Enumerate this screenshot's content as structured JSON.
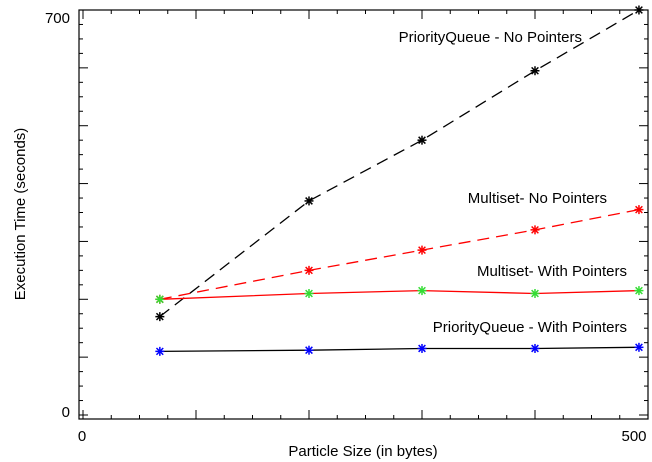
{
  "chart_data": {
    "type": "line",
    "xlabel": "Particle Size (in bytes)",
    "ylabel": "Execution Time (seconds)",
    "xlim": [
      0,
      500
    ],
    "ylim": [
      0,
      700
    ],
    "x_ticks": [
      0,
      500
    ],
    "y_ticks": [
      0,
      700
    ],
    "x": [
      68,
      200,
      300,
      400,
      492
    ],
    "series": [
      {
        "name": "PriorityQueue - No Pointers",
        "values": [
          170,
          370,
          475,
          595,
          700
        ],
        "line_color": "#000000",
        "marker_color": "#000000",
        "dash": "dashed"
      },
      {
        "name": "Multiset- No Pointers",
        "values": [
          200,
          250,
          285,
          320,
          355
        ],
        "line_color": "#ff0000",
        "marker_color": "#ff0000",
        "dash": "dashed"
      },
      {
        "name": "Multiset- With Pointers",
        "values": [
          200,
          210,
          215,
          210,
          215
        ],
        "line_color": "#ff0000",
        "marker_color": "#33dd33",
        "dash": "solid"
      },
      {
        "name": "PriorityQueue - With Pointers",
        "values": [
          110,
          112,
          115,
          115,
          117
        ],
        "line_color": "#000000",
        "marker_color": "#0000ff",
        "dash": "solid"
      }
    ],
    "grid": false,
    "legend": "inline labels"
  }
}
